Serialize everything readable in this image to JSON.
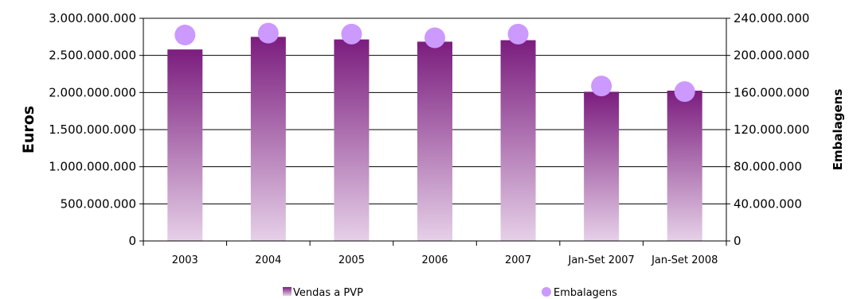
{
  "chart_data": {
    "type": "bar",
    "categories": [
      "2003",
      "2004",
      "2005",
      "2006",
      "2007",
      "Jan-Set 2007",
      "Jan-Set 2008"
    ],
    "ylabel": "Euros",
    "y2label": "Embalagens",
    "ylim": [
      0,
      3000000000
    ],
    "y2lim": [
      0,
      240000000
    ],
    "yticks": [
      "0",
      "500.000.000",
      "1.000.000.000",
      "1.500.000.000",
      "2.000.000.000",
      "2.500.000.000",
      "3.000.000.000"
    ],
    "y2ticks": [
      "0",
      "40.000.000",
      "80.000.000",
      "120.000.000",
      "160.000.000",
      "200.000.000",
      "240.000.000"
    ],
    "grid": true,
    "legend_position": "bottom",
    "series": [
      {
        "name": "Vendas a PVP",
        "type": "bar",
        "axis": "left",
        "values": [
          2580000000,
          2750000000,
          2715000000,
          2685000000,
          2705000000,
          2010000000,
          2025000000
        ],
        "color_top": "#7b1d7e",
        "color_bottom": "#e6d0e8"
      },
      {
        "name": "Embalagens",
        "type": "scatter",
        "axis": "right",
        "values": [
          222000000,
          224000000,
          223000000,
          219000000,
          223000000,
          167000000,
          161000000
        ],
        "color": "#cc99ff"
      }
    ]
  }
}
